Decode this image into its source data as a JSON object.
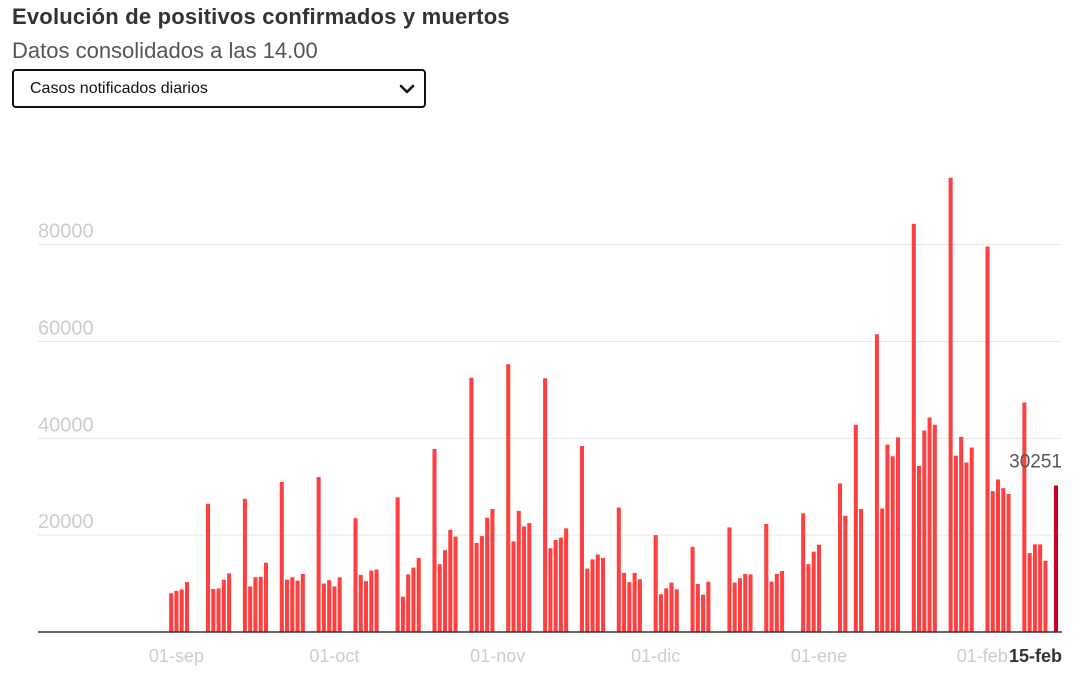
{
  "header": {
    "title": "Evolución de positivos confirmados y muertos",
    "subtitle": "Datos consolidados a las 14.00"
  },
  "selector": {
    "selected": "Casos notificados diarios",
    "icon": "chevron-down-icon"
  },
  "colors": {
    "bar": "#ff4040",
    "highlight": "#cc0022",
    "grid": "#e6e6e6",
    "tick": "#cccccc",
    "axis": "#333333"
  },
  "chart_data": {
    "type": "bar",
    "xlabel": "",
    "ylabel": "",
    "ylim": [
      0,
      95000
    ],
    "yticks": [
      20000,
      40000,
      60000,
      80000
    ],
    "grid": true,
    "date_range": [
      "2020-08-19",
      "2021-02-15"
    ],
    "xticks": [
      {
        "label": "01-sep",
        "date": "2020-09-01"
      },
      {
        "label": "01-oct",
        "date": "2020-10-01"
      },
      {
        "label": "01-nov",
        "date": "2020-11-01"
      },
      {
        "label": "01-dic",
        "date": "2020-12-01"
      },
      {
        "label": "01-ene",
        "date": "2021-01-01"
      },
      {
        "label": "01-feb",
        "date": "2021-02-01"
      },
      {
        "label": "15-feb",
        "date": "2021-02-15",
        "bold": true
      }
    ],
    "highlight": {
      "date": "2021-02-15",
      "value": 30251,
      "label": "30251"
    },
    "series": [
      {
        "values": [
          [
            "2020-08-31",
            8000
          ],
          [
            "2020-09-01",
            8500
          ],
          [
            "2020-09-02",
            8800
          ],
          [
            "2020-09-03",
            10300
          ],
          [
            "2020-09-07",
            26500
          ],
          [
            "2020-09-08",
            8900
          ],
          [
            "2020-09-09",
            9000
          ],
          [
            "2020-09-10",
            10800
          ],
          [
            "2020-09-11",
            12100
          ],
          [
            "2020-09-14",
            27500
          ],
          [
            "2020-09-15",
            9400
          ],
          [
            "2020-09-16",
            11300
          ],
          [
            "2020-09-17",
            11400
          ],
          [
            "2020-09-18",
            14300
          ],
          [
            "2020-09-21",
            31000
          ],
          [
            "2020-09-22",
            10800
          ],
          [
            "2020-09-23",
            11300
          ],
          [
            "2020-09-24",
            10600
          ],
          [
            "2020-09-25",
            12000
          ],
          [
            "2020-09-28",
            32000
          ],
          [
            "2020-09-29",
            10000
          ],
          [
            "2020-09-30",
            10700
          ],
          [
            "2020-10-01",
            9400
          ],
          [
            "2020-10-02",
            11300
          ],
          [
            "2020-10-05",
            23500
          ],
          [
            "2020-10-06",
            11800
          ],
          [
            "2020-10-07",
            10500
          ],
          [
            "2020-10-08",
            12700
          ],
          [
            "2020-10-09",
            12900
          ],
          [
            "2020-10-13",
            27800
          ],
          [
            "2020-10-14",
            7300
          ],
          [
            "2020-10-15",
            11900
          ],
          [
            "2020-10-16",
            13300
          ],
          [
            "2020-10-17",
            15300
          ],
          [
            "2020-10-20",
            37800
          ],
          [
            "2020-10-21",
            14000
          ],
          [
            "2020-10-22",
            16900
          ],
          [
            "2020-10-23",
            21100
          ],
          [
            "2020-10-24",
            19700
          ],
          [
            "2020-10-27",
            52500
          ],
          [
            "2020-10-28",
            18400
          ],
          [
            "2020-10-29",
            19800
          ],
          [
            "2020-10-30",
            23600
          ],
          [
            "2020-10-31",
            25400
          ],
          [
            "2020-11-03",
            55300
          ],
          [
            "2020-11-04",
            18700
          ],
          [
            "2020-11-05",
            25000
          ],
          [
            "2020-11-06",
            21800
          ],
          [
            "2020-11-07",
            22500
          ],
          [
            "2020-11-10",
            52400
          ],
          [
            "2020-11-11",
            17300
          ],
          [
            "2020-11-12",
            19000
          ],
          [
            "2020-11-13",
            19500
          ],
          [
            "2020-11-14",
            21400
          ],
          [
            "2020-11-17",
            38400
          ],
          [
            "2020-11-18",
            13100
          ],
          [
            "2020-11-19",
            15000
          ],
          [
            "2020-11-20",
            16000
          ],
          [
            "2020-11-21",
            15300
          ],
          [
            "2020-11-24",
            25700
          ],
          [
            "2020-11-25",
            12200
          ],
          [
            "2020-11-26",
            10300
          ],
          [
            "2020-11-27",
            12200
          ],
          [
            "2020-11-28",
            10900
          ],
          [
            "2020-12-01",
            20000
          ],
          [
            "2020-12-02",
            7800
          ],
          [
            "2020-12-03",
            9000
          ],
          [
            "2020-12-04",
            10200
          ],
          [
            "2020-12-05",
            8800
          ],
          [
            "2020-12-08",
            17600
          ],
          [
            "2020-12-09",
            9900
          ],
          [
            "2020-12-10",
            7700
          ],
          [
            "2020-12-11",
            10400
          ],
          [
            "2020-12-15",
            21600
          ],
          [
            "2020-12-16",
            10200
          ],
          [
            "2020-12-17",
            11100
          ],
          [
            "2020-12-18",
            12000
          ],
          [
            "2020-12-19",
            11900
          ],
          [
            "2020-12-22",
            22300
          ],
          [
            "2020-12-23",
            10400
          ],
          [
            "2020-12-24",
            12000
          ],
          [
            "2020-12-25",
            12600
          ],
          [
            "2020-12-29",
            24500
          ],
          [
            "2020-12-30",
            14000
          ],
          [
            "2020-12-31",
            16600
          ],
          [
            "2021-01-01",
            18000
          ],
          [
            "2021-01-05",
            30700
          ],
          [
            "2021-01-06",
            24000
          ],
          [
            "2021-01-08",
            42800
          ],
          [
            "2021-01-09",
            25400
          ],
          [
            "2021-01-12",
            61500
          ],
          [
            "2021-01-13",
            25500
          ],
          [
            "2021-01-14",
            38700
          ],
          [
            "2021-01-15",
            36300
          ],
          [
            "2021-01-16",
            40200
          ],
          [
            "2021-01-19",
            84300
          ],
          [
            "2021-01-20",
            34300
          ],
          [
            "2021-01-21",
            41600
          ],
          [
            "2021-01-22",
            44300
          ],
          [
            "2021-01-23",
            42800
          ],
          [
            "2021-01-26",
            93800
          ],
          [
            "2021-01-27",
            36400
          ],
          [
            "2021-01-28",
            40300
          ],
          [
            "2021-01-29",
            35000
          ],
          [
            "2021-01-30",
            38100
          ],
          [
            "2021-02-02",
            79600
          ],
          [
            "2021-02-03",
            29100
          ],
          [
            "2021-02-04",
            31500
          ],
          [
            "2021-02-05",
            29700
          ],
          [
            "2021-02-06",
            28500
          ],
          [
            "2021-02-09",
            47400
          ],
          [
            "2021-02-10",
            16300
          ],
          [
            "2021-02-11",
            18100
          ],
          [
            "2021-02-12",
            18100
          ],
          [
            "2021-02-13",
            14700
          ],
          [
            "2021-02-15",
            30251
          ]
        ]
      }
    ]
  }
}
